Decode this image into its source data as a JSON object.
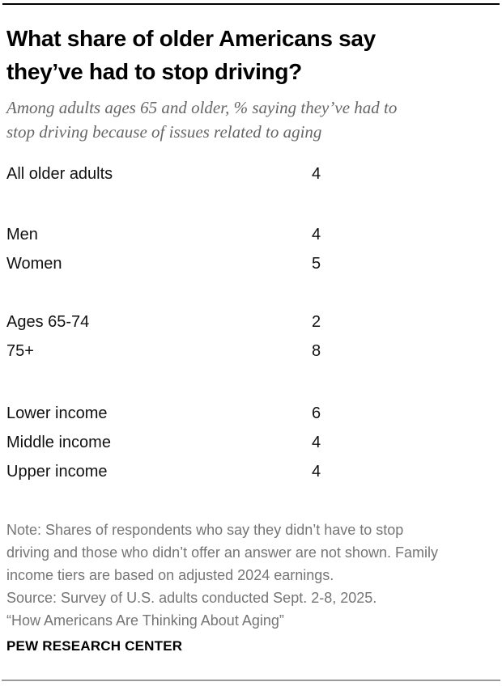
{
  "colors": {
    "background": "#ffffff",
    "text": "#000000",
    "subtitle_gray": "#666666",
    "note_gray": "#757575",
    "top_rule": "#000000",
    "bottom_rule": "#9a9a9a"
  },
  "header": {
    "title_lines": [
      "What share of older Americans say",
      "they’ve had to stop driving?"
    ],
    "subtitle_lines": [
      "Among adults ages 65 and older, % saying they’ve had to",
      "stop driving because of issues related to aging"
    ]
  },
  "chart_data": {
    "type": "table",
    "title": "What share of older Americans say they’ve had to stop driving?",
    "subtitle": "Among adults ages 65 and older, % saying they’ve had to stop driving because of issues related to aging",
    "unit": "%",
    "groups": [
      {
        "rows": [
          {
            "label": "All older adults",
            "value": 4
          }
        ]
      },
      {
        "rows": [
          {
            "label": "Men",
            "value": 4
          },
          {
            "label": "Women",
            "value": 5
          }
        ]
      },
      {
        "rows": [
          {
            "label": "Ages 65-74",
            "value": 2
          },
          {
            "label": "75+",
            "value": 8
          }
        ]
      },
      {
        "rows": [
          {
            "label": "Lower income",
            "value": 6
          },
          {
            "label": "Middle income",
            "value": 4
          },
          {
            "label": "Upper income",
            "value": 4
          }
        ]
      }
    ]
  },
  "footnote": {
    "lines": [
      "Note: Shares of respondents who say they didn’t have to stop",
      "driving and those who didn’t offer an answer are not shown. Family",
      "income tiers are based on adjusted 2024 earnings.",
      "Source: Survey of U.S. adults conducted Sept. 2-8, 2025.",
      "“How Americans Are Thinking About Aging”"
    ]
  },
  "footer": {
    "brand": "PEW RESEARCH CENTER"
  }
}
